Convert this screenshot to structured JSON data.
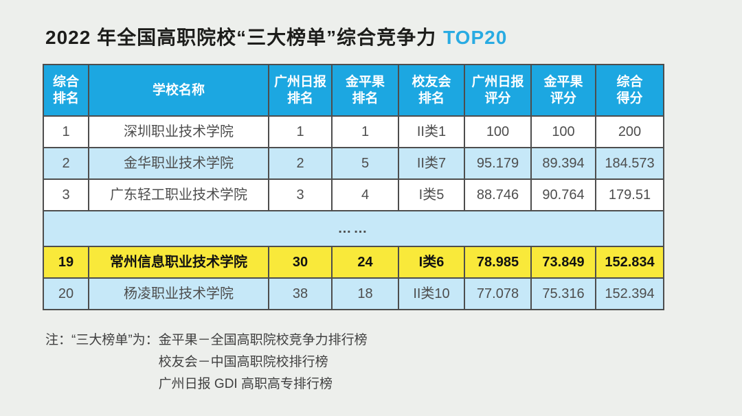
{
  "title": {
    "text": "2022 年全国高职院校“三大榜单”综合竞争力",
    "highlight": "TOP20"
  },
  "colors": {
    "background": "#edefec",
    "accent": "#29abe2",
    "header_bg": "#1ca7e1",
    "row_alt_bg": "#c6e8f8",
    "highlight_row_bg": "#f9e93a",
    "border": "#4d4d4d"
  },
  "chart_data": {
    "type": "table",
    "title": "2022 年全国高职院校“三大榜单”综合竞争力 TOP20",
    "columns": [
      "综合排名",
      "学校名称",
      "广州日报排名",
      "金平果排名",
      "校友会排名",
      "广州日报评分",
      "金平果评分",
      "综合得分"
    ],
    "rows": [
      [
        "1",
        "深圳职业技术学院",
        "1",
        "1",
        "II类1",
        "100",
        "100",
        "200"
      ],
      [
        "2",
        "金华职业技术学院",
        "2",
        "5",
        "II类7",
        "95.179",
        "89.394",
        "184.573"
      ],
      [
        "3",
        "广东轻工职业技术学院",
        "3",
        "4",
        "I类5",
        "88.746",
        "90.764",
        "179.51"
      ],
      [
        "……"
      ],
      [
        "19",
        "常州信息职业技术学院",
        "30",
        "24",
        "I类6",
        "78.985",
        "73.849",
        "152.834"
      ],
      [
        "20",
        "杨凌职业技术学院",
        "38",
        "18",
        "II类10",
        "77.078",
        "75.316",
        "152.394"
      ]
    ],
    "highlighted_row": "19 常州信息职业技术学院"
  },
  "table": {
    "headers": [
      "综合\n排名",
      "学校名称",
      "广州日报\n排名",
      "金平果\n排名",
      "校友会\n排名",
      "广州日报\n评分",
      "金平果\n评分",
      "综合\n得分"
    ],
    "ellipsis": "……",
    "rows": [
      {
        "cells": [
          "1",
          "深圳职业技术学院",
          "1",
          "1",
          "II类1",
          "100",
          "100",
          "200"
        ]
      },
      {
        "cells": [
          "2",
          "金华职业技术学院",
          "2",
          "5",
          "II类7",
          "95.179",
          "89.394",
          "184.573"
        ]
      },
      {
        "cells": [
          "3",
          "广东轻工职业技术学院",
          "3",
          "4",
          "I类5",
          "88.746",
          "90.764",
          "179.51"
        ]
      },
      {
        "cells": [
          "19",
          "常州信息职业技术学院",
          "30",
          "24",
          "I类6",
          "78.985",
          "73.849",
          "152.834"
        ]
      },
      {
        "cells": [
          "20",
          "杨凌职业技术学院",
          "38",
          "18",
          "II类10",
          "77.078",
          "75.316",
          "152.394"
        ]
      }
    ]
  },
  "note": {
    "prefix": "注：“三大榜单”为：",
    "lines": [
      "金平果－全国高职院校竞争力排行榜",
      "校友会－中国高职院校排行榜",
      "广州日报 GDI 高职高专排行榜"
    ]
  }
}
